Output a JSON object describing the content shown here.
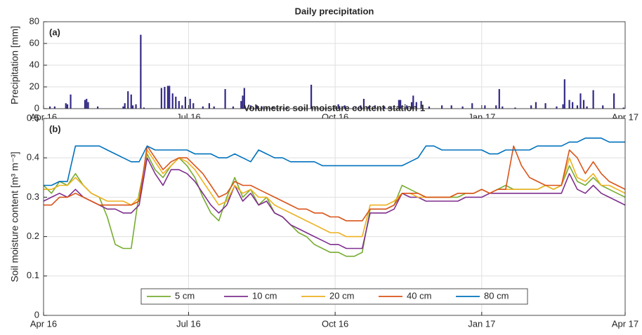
{
  "chart_data": [
    {
      "type": "bar",
      "title": "Daily precipitation",
      "annotation": "(a)",
      "ylabel": "Precipitation [mm]",
      "color": "#332a85",
      "grid": true,
      "xlim": [
        0,
        365
      ],
      "xticks": [
        {
          "value": 0,
          "label": "Apr 16"
        },
        {
          "value": 91,
          "label": "Jul 16"
        },
        {
          "value": 183,
          "label": "Oct 16"
        },
        {
          "value": 275,
          "label": "Jan 17"
        },
        {
          "value": 365,
          "label": "Apr 17"
        }
      ],
      "ylim": [
        0,
        80
      ],
      "yticks": [
        0,
        20,
        40,
        60,
        80
      ],
      "x": [
        4,
        7,
        14,
        15,
        17,
        26,
        27,
        28,
        34,
        50,
        51,
        53,
        55,
        56,
        58,
        61,
        63,
        74,
        76,
        78,
        79,
        81,
        83,
        85,
        87,
        89,
        92,
        94,
        100,
        104,
        107,
        114,
        119,
        124,
        125,
        126,
        130,
        134,
        137,
        140,
        144,
        153,
        168,
        185,
        189,
        196,
        199,
        201,
        204,
        208,
        214,
        218,
        223,
        224,
        228,
        231,
        232,
        234,
        237,
        242,
        250,
        256,
        263,
        269,
        277,
        284,
        286,
        288,
        296,
        306,
        309,
        315,
        322,
        326,
        327,
        330,
        332,
        335,
        337,
        339,
        341,
        345,
        351,
        358,
        364
      ],
      "values": [
        2,
        2,
        5,
        4,
        13,
        8,
        9,
        6,
        2,
        2,
        5,
        16,
        13,
        3,
        4,
        68,
        1,
        19,
        20,
        21,
        21,
        14,
        11,
        7,
        3,
        11,
        9,
        5,
        2,
        5,
        2,
        18,
        2,
        7,
        12,
        19,
        3,
        3,
        2,
        2,
        2,
        1,
        22,
        4,
        3,
        2,
        3,
        9,
        2,
        3,
        2,
        2,
        8,
        8,
        3,
        6,
        12,
        6,
        7,
        2,
        3,
        3,
        2,
        5,
        3,
        3,
        18,
        2,
        1,
        3,
        6,
        5,
        2,
        4,
        27,
        8,
        6,
        3,
        14,
        8,
        2,
        17,
        3,
        14,
        1
      ]
    },
    {
      "type": "line",
      "title": "Volumetric soil moisture content station 1",
      "annotation": "(b)",
      "ylabel": "Soil moisture content [m³ m⁻³]",
      "grid": true,
      "legend": "lower center",
      "xlim": [
        0,
        365
      ],
      "xticks": [
        {
          "value": 0,
          "label": "Apr 16"
        },
        {
          "value": 91,
          "label": "Jul 16"
        },
        {
          "value": 183,
          "label": "Oct 16"
        },
        {
          "value": 275,
          "label": "Jan 17"
        },
        {
          "value": 365,
          "label": "Apr 17"
        }
      ],
      "ylim": [
        0,
        0.5
      ],
      "yticks": [
        0,
        0.1,
        0.2,
        0.3,
        0.4,
        0.5
      ],
      "x": [
        0,
        5,
        10,
        15,
        20,
        25,
        30,
        35,
        40,
        45,
        50,
        55,
        60,
        65,
        70,
        75,
        80,
        85,
        90,
        95,
        100,
        105,
        110,
        115,
        120,
        125,
        130,
        135,
        140,
        145,
        150,
        155,
        160,
        165,
        170,
        175,
        180,
        185,
        190,
        195,
        200,
        205,
        210,
        215,
        220,
        225,
        230,
        235,
        240,
        245,
        250,
        255,
        260,
        265,
        270,
        275,
        280,
        285,
        290,
        295,
        300,
        305,
        310,
        315,
        320,
        325,
        330,
        335,
        340,
        345,
        350,
        355,
        360,
        365
      ],
      "series": [
        {
          "name": "5 cm",
          "color": "#77ac30",
          "values": [
            0.33,
            0.31,
            0.34,
            0.33,
            0.36,
            0.33,
            0.31,
            0.3,
            0.25,
            0.18,
            0.17,
            0.17,
            0.31,
            0.41,
            0.37,
            0.35,
            0.38,
            0.4,
            0.38,
            0.35,
            0.3,
            0.26,
            0.24,
            0.3,
            0.35,
            0.3,
            0.32,
            0.28,
            0.3,
            0.26,
            0.25,
            0.23,
            0.21,
            0.2,
            0.18,
            0.17,
            0.16,
            0.16,
            0.15,
            0.15,
            0.16,
            0.27,
            0.27,
            0.27,
            0.28,
            0.33,
            0.32,
            0.31,
            0.3,
            0.3,
            0.3,
            0.3,
            0.3,
            0.31,
            0.31,
            0.32,
            0.31,
            0.32,
            0.33,
            0.32,
            0.32,
            0.32,
            0.32,
            0.33,
            0.32,
            0.33,
            0.38,
            0.34,
            0.33,
            0.35,
            0.33,
            0.32,
            0.31,
            0.3
          ]
        },
        {
          "name": "10 cm",
          "color": "#7e2f8e",
          "values": [
            0.29,
            0.3,
            0.31,
            0.3,
            0.32,
            0.3,
            0.29,
            0.28,
            0.27,
            0.27,
            0.26,
            0.26,
            0.28,
            0.4,
            0.36,
            0.33,
            0.37,
            0.37,
            0.36,
            0.34,
            0.31,
            0.28,
            0.26,
            0.28,
            0.33,
            0.29,
            0.31,
            0.28,
            0.29,
            0.26,
            0.25,
            0.23,
            0.22,
            0.21,
            0.2,
            0.19,
            0.18,
            0.18,
            0.17,
            0.17,
            0.17,
            0.26,
            0.26,
            0.26,
            0.27,
            0.31,
            0.3,
            0.3,
            0.29,
            0.29,
            0.29,
            0.29,
            0.29,
            0.3,
            0.3,
            0.3,
            0.31,
            0.31,
            0.31,
            0.31,
            0.31,
            0.31,
            0.31,
            0.31,
            0.31,
            0.31,
            0.36,
            0.32,
            0.31,
            0.33,
            0.31,
            0.3,
            0.29,
            0.28
          ]
        },
        {
          "name": "20 cm",
          "color": "#edb120",
          "values": [
            0.32,
            0.32,
            0.33,
            0.33,
            0.35,
            0.33,
            0.31,
            0.3,
            0.29,
            0.29,
            0.29,
            0.28,
            0.3,
            0.42,
            0.39,
            0.36,
            0.38,
            0.4,
            0.39,
            0.37,
            0.34,
            0.31,
            0.28,
            0.29,
            0.33,
            0.31,
            0.32,
            0.3,
            0.3,
            0.28,
            0.27,
            0.26,
            0.25,
            0.24,
            0.23,
            0.22,
            0.21,
            0.21,
            0.2,
            0.2,
            0.2,
            0.28,
            0.28,
            0.28,
            0.29,
            0.31,
            0.31,
            0.3,
            0.3,
            0.3,
            0.3,
            0.3,
            0.31,
            0.31,
            0.31,
            0.32,
            0.31,
            0.32,
            0.32,
            0.32,
            0.32,
            0.32,
            0.32,
            0.33,
            0.32,
            0.33,
            0.4,
            0.35,
            0.34,
            0.36,
            0.33,
            0.33,
            0.32,
            0.31
          ]
        },
        {
          "name": "40 cm",
          "color": "#d95319",
          "values": [
            0.28,
            0.28,
            0.3,
            0.3,
            0.31,
            0.3,
            0.29,
            0.28,
            0.28,
            0.28,
            0.28,
            0.28,
            0.29,
            0.43,
            0.4,
            0.37,
            0.39,
            0.4,
            0.4,
            0.38,
            0.36,
            0.33,
            0.3,
            0.31,
            0.34,
            0.33,
            0.33,
            0.32,
            0.31,
            0.3,
            0.29,
            0.28,
            0.27,
            0.27,
            0.26,
            0.26,
            0.25,
            0.25,
            0.24,
            0.24,
            0.24,
            0.27,
            0.27,
            0.27,
            0.28,
            0.31,
            0.31,
            0.31,
            0.3,
            0.3,
            0.3,
            0.3,
            0.31,
            0.31,
            0.31,
            0.32,
            0.31,
            0.32,
            0.32,
            0.43,
            0.38,
            0.35,
            0.34,
            0.33,
            0.33,
            0.33,
            0.42,
            0.4,
            0.36,
            0.39,
            0.36,
            0.34,
            0.33,
            0.32
          ]
        },
        {
          "name": "80 cm",
          "color": "#0072bd",
          "values": [
            0.33,
            0.33,
            0.34,
            0.34,
            0.43,
            0.43,
            0.43,
            0.43,
            0.42,
            0.41,
            0.4,
            0.39,
            0.39,
            0.43,
            0.42,
            0.42,
            0.42,
            0.42,
            0.42,
            0.41,
            0.41,
            0.41,
            0.4,
            0.4,
            0.41,
            0.4,
            0.39,
            0.42,
            0.41,
            0.4,
            0.4,
            0.39,
            0.39,
            0.39,
            0.39,
            0.38,
            0.38,
            0.38,
            0.38,
            0.38,
            0.38,
            0.38,
            0.38,
            0.38,
            0.38,
            0.38,
            0.39,
            0.4,
            0.43,
            0.43,
            0.42,
            0.42,
            0.42,
            0.42,
            0.42,
            0.42,
            0.41,
            0.41,
            0.42,
            0.42,
            0.42,
            0.42,
            0.43,
            0.43,
            0.43,
            0.43,
            0.44,
            0.44,
            0.45,
            0.45,
            0.45,
            0.44,
            0.44,
            0.44
          ]
        }
      ]
    }
  ]
}
